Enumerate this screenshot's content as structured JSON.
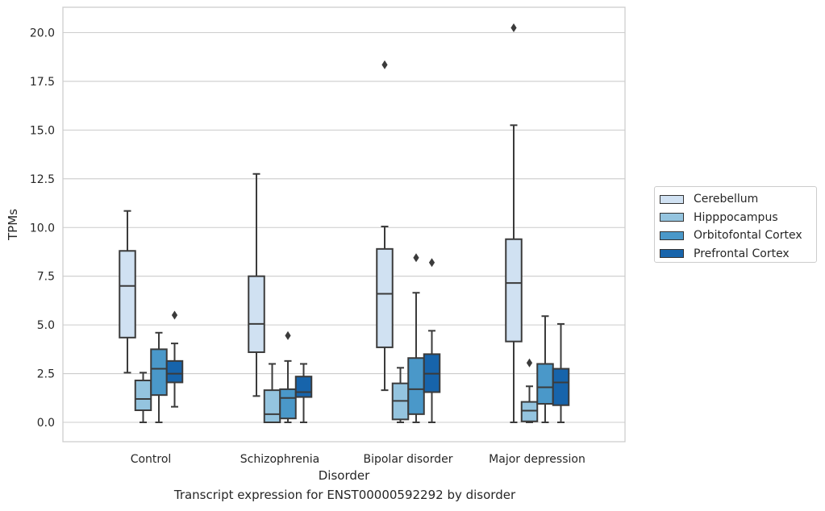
{
  "caption": "Transcript expression for ENST00000592292 by disorder",
  "chart_data": {
    "type": "box",
    "xlabel": "Disorder",
    "ylabel": "TPMs",
    "ylim": [
      -1.0,
      21.3
    ],
    "yticks": [
      "0.0",
      "2.5",
      "5.0",
      "7.5",
      "10.0",
      "12.5",
      "15.0",
      "17.5",
      "20.0"
    ],
    "grid": "horizontal",
    "legend_position": "right",
    "categories": [
      "Control",
      "Schizophrenia",
      "Bipolar disorder",
      "Major depression"
    ],
    "series": [
      {
        "name": "Cerebellum",
        "color": "#d0e1f2",
        "boxes": [
          {
            "whislo": 2.55,
            "q1": 4.35,
            "med": 7.0,
            "q3": 8.8,
            "whishi": 10.85,
            "fliers": []
          },
          {
            "whislo": 1.35,
            "q1": 3.6,
            "med": 5.05,
            "q3": 7.5,
            "whishi": 12.75,
            "fliers": []
          },
          {
            "whislo": 1.65,
            "q1": 3.85,
            "med": 6.6,
            "q3": 8.9,
            "whishi": 10.05,
            "fliers": [
              18.35
            ]
          },
          {
            "whislo": 0.0,
            "q1": 4.15,
            "med": 7.15,
            "q3": 9.4,
            "whishi": 15.25,
            "fliers": [
              20.25
            ]
          }
        ]
      },
      {
        "name": "Hipppocampus",
        "color": "#94c4df",
        "boxes": [
          {
            "whislo": 0.0,
            "q1": 0.62,
            "med": 1.2,
            "q3": 2.15,
            "whishi": 2.55,
            "fliers": []
          },
          {
            "whislo": 0.0,
            "q1": 0.0,
            "med": 0.42,
            "q3": 1.65,
            "whishi": 3.0,
            "fliers": []
          },
          {
            "whislo": 0.0,
            "q1": 0.15,
            "med": 1.1,
            "q3": 2.0,
            "whishi": 2.8,
            "fliers": []
          },
          {
            "whislo": 0.0,
            "q1": 0.05,
            "med": 0.6,
            "q3": 1.05,
            "whishi": 1.85,
            "fliers": [
              3.05
            ]
          }
        ]
      },
      {
        "name": "Orbitofontal Cortex",
        "color": "#4a98c9",
        "boxes": [
          {
            "whislo": 0.0,
            "q1": 1.4,
            "med": 2.75,
            "q3": 3.75,
            "whishi": 4.6,
            "fliers": []
          },
          {
            "whislo": 0.0,
            "q1": 0.2,
            "med": 1.25,
            "q3": 1.7,
            "whishi": 3.15,
            "fliers": [
              4.45
            ]
          },
          {
            "whislo": 0.0,
            "q1": 0.42,
            "med": 1.7,
            "q3": 3.3,
            "whishi": 6.65,
            "fliers": [
              8.45
            ]
          },
          {
            "whislo": 0.0,
            "q1": 0.95,
            "med": 1.8,
            "q3": 3.0,
            "whishi": 5.45,
            "fliers": []
          }
        ]
      },
      {
        "name": "Prefrontal Cortex",
        "color": "#1764ab",
        "boxes": [
          {
            "whislo": 0.8,
            "q1": 2.05,
            "med": 2.5,
            "q3": 3.15,
            "whishi": 4.05,
            "fliers": [
              5.5
            ]
          },
          {
            "whislo": 0.0,
            "q1": 1.3,
            "med": 1.55,
            "q3": 2.35,
            "whishi": 3.0,
            "fliers": []
          },
          {
            "whislo": 0.0,
            "q1": 1.55,
            "med": 2.5,
            "q3": 3.5,
            "whishi": 4.7,
            "fliers": [
              8.2
            ]
          },
          {
            "whislo": 0.0,
            "q1": 0.88,
            "med": 2.05,
            "q3": 2.75,
            "whishi": 5.05,
            "fliers": []
          }
        ]
      }
    ]
  }
}
